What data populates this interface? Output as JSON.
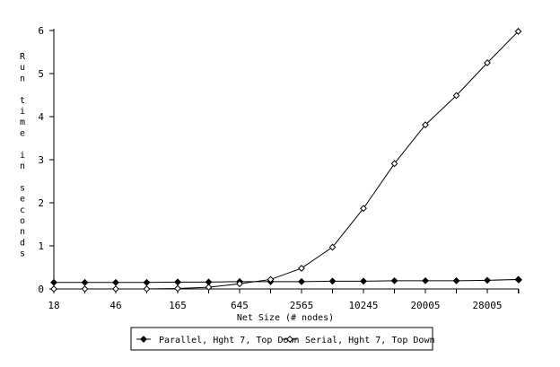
{
  "chart_data": {
    "type": "line",
    "title": "",
    "xlabel": "Net Size (# nodes)",
    "ylabel": "Run time in seconds",
    "ylabel_words": [
      "Run",
      "time",
      "in",
      "seconds"
    ],
    "ylim": [
      0,
      6
    ],
    "yticks": [
      "0",
      "1",
      "2",
      "3",
      "4",
      "5",
      "6"
    ],
    "x_tick_labels": [
      "18",
      "46",
      "165",
      "645",
      "2565",
      "10245",
      "20005",
      "28005"
    ],
    "grid": false,
    "legend_position": "bottom",
    "series": [
      {
        "name": "Parallel, Hght 7, Top Down",
        "marker": "filled-diamond",
        "values": [
          0.15,
          0.15,
          0.15,
          0.15,
          0.16,
          0.16,
          0.17,
          0.17,
          0.17,
          0.18,
          0.18,
          0.19,
          0.19,
          0.19,
          0.2,
          0.22,
          0.21
        ]
      },
      {
        "name": "Serial, Hght 7, Top Down",
        "marker": "hollow-diamond",
        "values": [
          0.0,
          0.0,
          0.0,
          0.0,
          0.01,
          0.04,
          0.12,
          0.22,
          0.48,
          0.97,
          1.87,
          2.91,
          3.81,
          4.49,
          5.25,
          5.98
        ]
      }
    ]
  }
}
